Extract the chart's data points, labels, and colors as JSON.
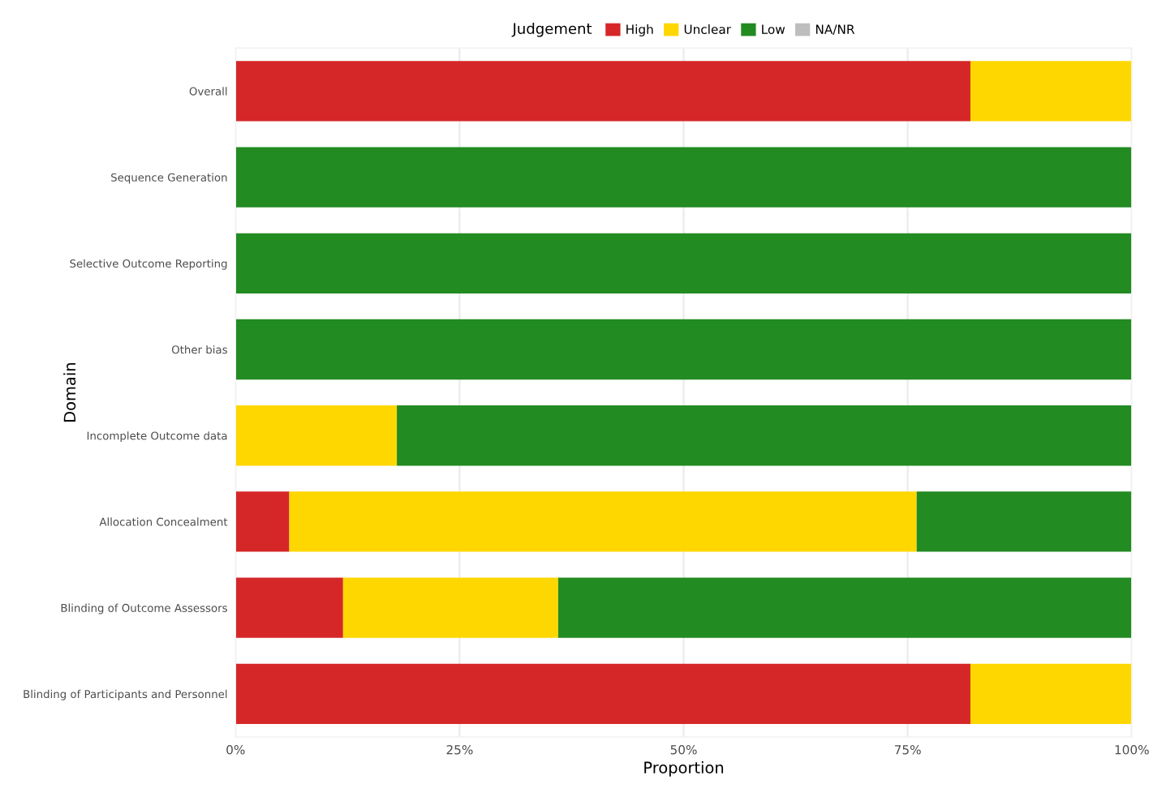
{
  "chart_data": {
    "type": "bar",
    "orientation": "horizontal",
    "stacked": true,
    "xlabel": "Proportion",
    "ylabel": "Domain",
    "legend_title": "Judgement",
    "legend": "top",
    "categories": [
      "Overall",
      "Sequence Generation",
      "Selective Outcome Reporting",
      "Other bias",
      "Incomplete Outcome data",
      "Allocation Concealment",
      "Blinding of Outcome Assessors",
      "Blinding of Participants and Personnel"
    ],
    "series": [
      {
        "name": "High",
        "color": "#d62728",
        "values": [
          0.82,
          null,
          null,
          null,
          null,
          0.06,
          0.12,
          0.82
        ]
      },
      {
        "name": "Unclear",
        "color": "#ffd700",
        "values": [
          0.18,
          null,
          null,
          null,
          0.18,
          0.7,
          0.24,
          0.18
        ]
      },
      {
        "name": "Low",
        "color": "#228b22",
        "values": [
          null,
          1.0,
          1.0,
          1.0,
          0.82,
          0.24,
          0.64,
          null
        ]
      },
      {
        "name": "NA/NR",
        "color": "#bebebe",
        "values": [
          null,
          null,
          null,
          null,
          null,
          null,
          null,
          null
        ]
      }
    ],
    "xlim": [
      0,
      1
    ],
    "xticks": [
      {
        "value": 0,
        "label": "0%"
      },
      {
        "value": 0.25,
        "label": "25%"
      },
      {
        "value": 0.5,
        "label": "50%"
      },
      {
        "value": 0.75,
        "label": "75%"
      },
      {
        "value": 1,
        "label": "100%"
      }
    ],
    "grid": "x"
  }
}
